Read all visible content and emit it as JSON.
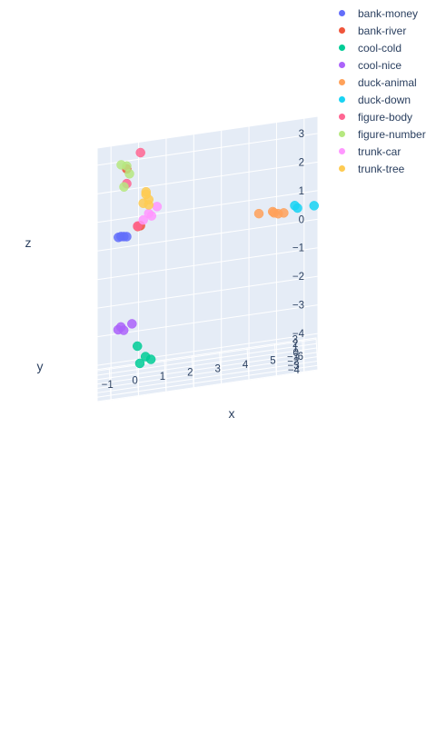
{
  "chart_data": {
    "type": "scatter",
    "subtype": "3d",
    "title": "",
    "axes": {
      "x": {
        "label": "x",
        "ticks": [
          "6",
          "5",
          "4",
          "3",
          "2",
          "1",
          "0",
          "−1"
        ]
      },
      "y": {
        "label": "y",
        "ticks": [
          "−4",
          "−3",
          "−2",
          "−1",
          "0",
          "1",
          "2",
          "3"
        ]
      },
      "z": {
        "label": "z",
        "ticks": [
          "3",
          "2",
          "1",
          "0",
          "−1",
          "−2",
          "−3",
          "−4"
        ]
      }
    },
    "grid": true,
    "legend_position": "top-right",
    "series": [
      {
        "name": "bank-money",
        "color": "#636efa",
        "points": [
          [
            -0.5,
            -0.5,
            -0.2
          ],
          [
            -0.6,
            -0.4,
            -0.2
          ],
          [
            -0.4,
            -0.6,
            -0.2
          ],
          [
            -0.7,
            -0.5,
            -0.2
          ]
        ]
      },
      {
        "name": "bank-river",
        "color": "#ef553b",
        "points": [
          [
            0.0,
            -0.6,
            0.1
          ],
          [
            0.1,
            -0.5,
            0.1
          ],
          [
            -0.4,
            -0.8,
            2.2
          ]
        ]
      },
      {
        "name": "cool-cold",
        "color": "#00cc96",
        "points": [
          [
            0.0,
            0.8,
            -4.3
          ],
          [
            0.3,
            1.4,
            -4.8
          ],
          [
            0.5,
            1.9,
            -5.0
          ],
          [
            0.1,
            2.0,
            -5.1
          ]
        ]
      },
      {
        "name": "cool-nice",
        "color": "#ab63fa",
        "points": [
          [
            -0.2,
            0.2,
            -3.4
          ],
          [
            -0.6,
            0.5,
            -3.5
          ],
          [
            -0.7,
            0.6,
            -3.6
          ],
          [
            -0.5,
            0.3,
            -3.6
          ]
        ]
      },
      {
        "name": "duck-animal",
        "color": "#ffa15a",
        "points": [
          [
            4.4,
            0.3,
            -0.2
          ],
          [
            4.9,
            0.3,
            -0.2
          ],
          [
            5.1,
            0.3,
            -0.3
          ],
          [
            5.3,
            0.3,
            -0.3
          ],
          [
            4.95,
            0.3,
            -0.25
          ]
        ]
      },
      {
        "name": "duck-down",
        "color": "#19d3f3",
        "points": [
          [
            6.4,
            0.3,
            -0.2
          ],
          [
            5.7,
            0.3,
            -0.1
          ],
          [
            5.8,
            0.3,
            -0.2
          ]
        ]
      },
      {
        "name": "figure-body",
        "color": "#ff6692",
        "points": [
          [
            0.1,
            -0.8,
            2.7
          ],
          [
            0.0,
            -0.5,
            0.1
          ],
          [
            -0.4,
            -0.9,
            1.7
          ]
        ]
      },
      {
        "name": "figure-number",
        "color": "#b6e880",
        "points": [
          [
            -0.4,
            -0.8,
            2.3
          ],
          [
            -0.6,
            -1.0,
            2.4
          ],
          [
            -0.5,
            -0.9,
            1.6
          ],
          [
            -0.3,
            -0.7,
            2.0
          ]
        ]
      },
      {
        "name": "trunk-car",
        "color": "#ff97ff",
        "points": [
          [
            0.7,
            -0.6,
            0.7
          ],
          [
            0.4,
            -0.6,
            0.5
          ],
          [
            0.5,
            -0.6,
            0.4
          ],
          [
            0.2,
            -0.6,
            0.3
          ]
        ]
      },
      {
        "name": "trunk-tree",
        "color": "#fecb52",
        "points": [
          [
            0.3,
            -0.8,
            1.3
          ],
          [
            0.4,
            -0.7,
            1.0
          ],
          [
            0.2,
            -0.7,
            0.9
          ],
          [
            0.3,
            -0.7,
            1.2
          ],
          [
            0.4,
            -0.6,
            0.8
          ]
        ]
      }
    ]
  }
}
